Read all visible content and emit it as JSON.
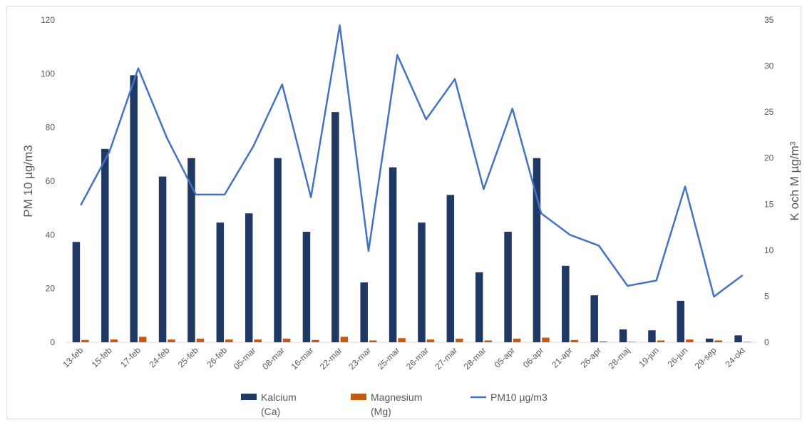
{
  "chart_data": {
    "type": "bar",
    "categories": [
      "13-feb",
      "15-feb",
      "17-feb",
      "24-feb",
      "25-feb",
      "26-feb",
      "05-mar",
      "08-mar",
      "16-mar",
      "22-mar",
      "23-mar",
      "25-mar",
      "26-mar",
      "27-mar",
      "28-mar",
      "05-apr",
      "06-apr",
      "21-apr",
      "26-apr",
      "28-maj",
      "19-jun",
      "26-jun",
      "29-sep",
      "24-okt"
    ],
    "ylabel_left": "PM 10 µg/m3",
    "ylabel_right": "K och M µg/m³",
    "ylim_left": [
      0,
      120
    ],
    "ylim_right": [
      0,
      35
    ],
    "yticks_left": [
      "0",
      "20",
      "40",
      "60",
      "80",
      "100",
      "120"
    ],
    "yticks_right": [
      "0",
      "5",
      "10",
      "15",
      "20",
      "25",
      "30",
      "35"
    ],
    "grid": false,
    "legend_position": "bottom",
    "series": [
      {
        "name": "Kalcium (Ca)",
        "legend_lines": [
          "Kalcium",
          "(Ca)"
        ],
        "kind": "bar",
        "axis": "right",
        "color": "#203864",
        "values": [
          10.9,
          21.0,
          29.0,
          18.0,
          20.0,
          13.0,
          14.0,
          20.0,
          12.0,
          25.0,
          6.5,
          19.0,
          13.0,
          16.0,
          7.6,
          12.0,
          20.0,
          8.3,
          5.1,
          1.4,
          1.3,
          4.5,
          0.4,
          0.75
        ]
      },
      {
        "name": "Magnesium (Mg)",
        "legend_lines": [
          "Magnesium",
          "(Mg)"
        ],
        "kind": "bar",
        "axis": "right",
        "color": "#c55a11",
        "values": [
          0.25,
          0.3,
          0.6,
          0.3,
          0.4,
          0.3,
          0.3,
          0.4,
          0.25,
          0.6,
          0.2,
          0.45,
          0.3,
          0.4,
          0.2,
          0.4,
          0.5,
          0.25,
          0.1,
          0.05,
          0.2,
          0.3,
          0.2,
          0.05
        ]
      },
      {
        "name": "PM10 µg/m3",
        "legend_lines": [
          "PM10 µg/m3"
        ],
        "kind": "line",
        "axis": "left",
        "color": "#4472c4",
        "values": [
          51,
          71,
          102,
          76,
          55,
          55,
          73,
          96,
          54,
          118,
          34,
          107,
          83,
          98,
          57,
          87,
          48,
          40,
          36,
          21,
          23,
          58,
          17,
          25
        ]
      }
    ]
  }
}
